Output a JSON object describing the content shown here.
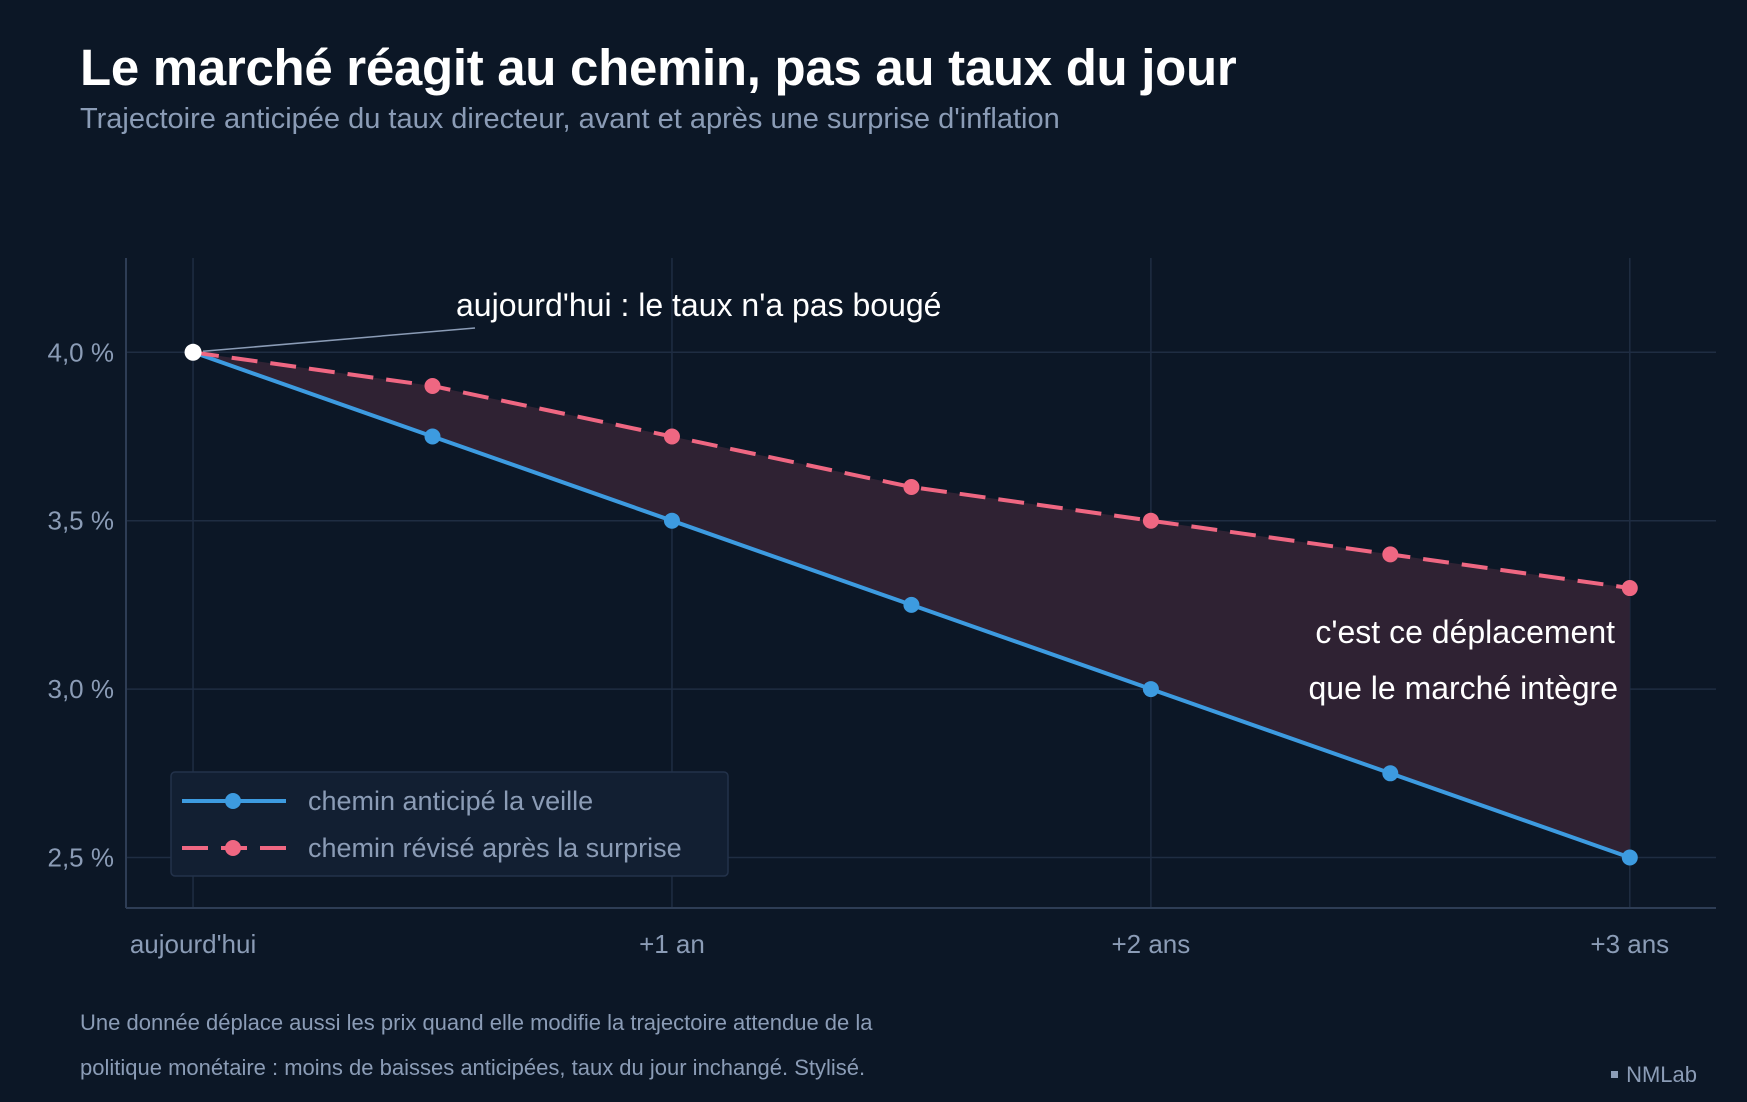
{
  "title": "Le marché réagit au chemin, pas au taux du jour",
  "subtitle": "Trajectoire anticipée du taux directeur, avant et après une surprise d'inflation",
  "footnote": {
    "line1": "Une donnée déplace aussi les prix quand elle modifie la trajectoire attendue de la",
    "line2": "politique monétaire : moins de baisses anticipées, taux du jour inchangé. Stylisé."
  },
  "brand": "NMLab",
  "chart_data": {
    "type": "line",
    "x": [
      0,
      0.5,
      1,
      1.5,
      2,
      2.5,
      3
    ],
    "x_tick_values": [
      0,
      1,
      2,
      3
    ],
    "x_tick_labels": [
      "aujourd'hui",
      "+1 an",
      "+2 ans",
      "+3 ans"
    ],
    "y_tick_values": [
      2.5,
      3.0,
      3.5,
      4.0
    ],
    "y_tick_labels": [
      "2,5 %",
      "3,0 %",
      "3,5 %",
      "4,0 %"
    ],
    "xlim": [
      -0.14,
      3.18
    ],
    "ylim": [
      2.35,
      4.28
    ],
    "grid": true,
    "legend_position": "bottom-left",
    "series": [
      {
        "name": "chemin anticipé la veille",
        "values": [
          4.0,
          3.75,
          3.5,
          3.25,
          3.0,
          2.75,
          2.5
        ],
        "color": "#3d9be0",
        "dashed": false
      },
      {
        "name": "chemin révisé après la surprise",
        "values": [
          4.0,
          3.9,
          3.75,
          3.6,
          3.5,
          3.4,
          3.3
        ],
        "color": "#ef6782",
        "dashed": true
      }
    ],
    "fill_between": {
      "color": "#2f2233"
    },
    "start_point": {
      "x": 0,
      "y": 4.0,
      "color": "#ffffff"
    },
    "annotations": [
      {
        "text": "aujourd'hui : le taux n'a pas bougé"
      },
      {
        "text_line1": "c'est ce déplacement",
        "text_line2": "que le marché intègre"
      }
    ]
  }
}
